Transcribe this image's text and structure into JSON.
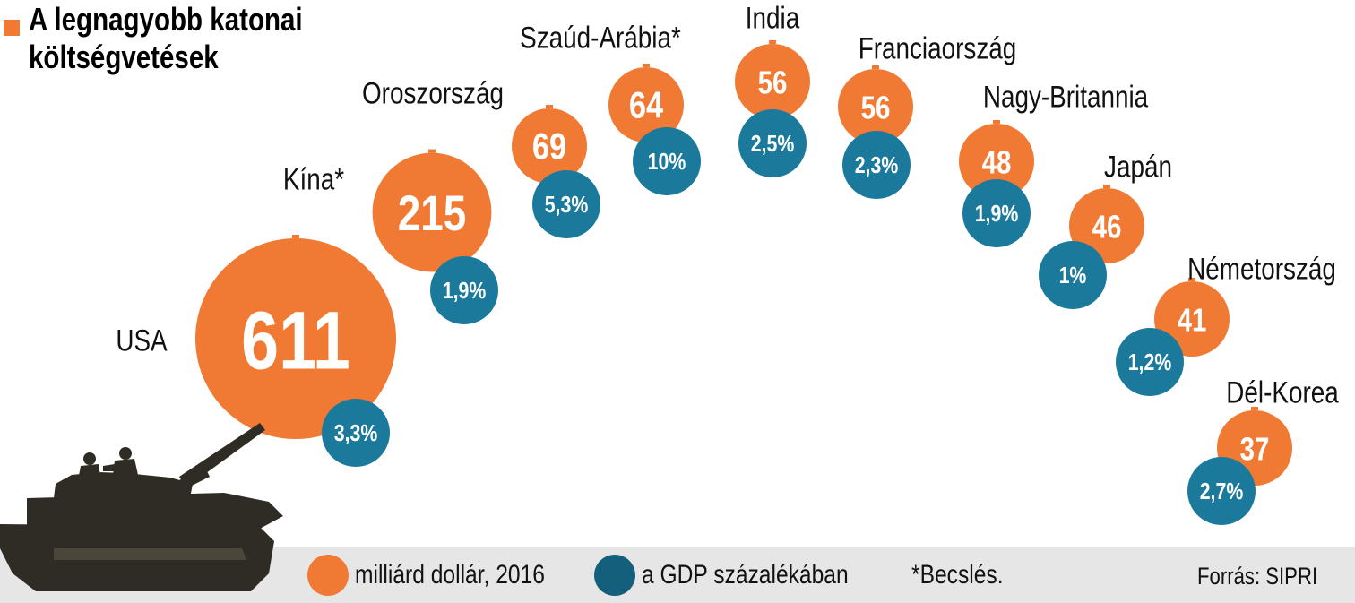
{
  "title": {
    "line1": "A legnagyobb katonai",
    "line2": "költségvetések"
  },
  "colors": {
    "orange": "#f07a34",
    "blue": "#1b7a9c",
    "dark_blue": "#145f7c",
    "footer": "#e6e6e6",
    "tank": "#2e2c24"
  },
  "chart_data": {
    "type": "bubble",
    "title": "A legnagyobb katonai költségvetések",
    "series": [
      {
        "name": "milliárd dollár, 2016",
        "color": "#f07a34"
      },
      {
        "name": "a GDP százalékában",
        "color": "#1b7a9c"
      }
    ],
    "countries": [
      {
        "name": "USA",
        "spending": 611,
        "spending_label": "611",
        "gdp_pct": 3.3,
        "gdp_label": "3,3%"
      },
      {
        "name": "Kína*",
        "spending": 215,
        "spending_label": "215",
        "gdp_pct": 1.9,
        "gdp_label": "1,9%"
      },
      {
        "name": "Oroszország",
        "spending": 69,
        "spending_label": "69",
        "gdp_pct": 5.3,
        "gdp_label": "5,3%"
      },
      {
        "name": "Szaúd-Arábia*",
        "spending": 64,
        "spending_label": "64",
        "gdp_pct": 10,
        "gdp_label": "10%"
      },
      {
        "name": "India",
        "spending": 56,
        "spending_label": "56",
        "gdp_pct": 2.5,
        "gdp_label": "2,5%"
      },
      {
        "name": "Franciaország",
        "spending": 56,
        "spending_label": "56",
        "gdp_pct": 2.3,
        "gdp_label": "2,3%"
      },
      {
        "name": "Nagy-Britannia",
        "spending": 48,
        "spending_label": "48",
        "gdp_pct": 1.9,
        "gdp_label": "1,9%"
      },
      {
        "name": "Japán",
        "spending": 46,
        "spending_label": "46",
        "gdp_pct": 1,
        "gdp_label": "1%"
      },
      {
        "name": "Németország",
        "spending": 41,
        "spending_label": "41",
        "gdp_pct": 1.2,
        "gdp_label": "1,2%"
      },
      {
        "name": "Dél-Korea",
        "spending": 37,
        "spending_label": "37",
        "gdp_pct": 2.7,
        "gdp_label": "2,7%"
      }
    ]
  },
  "legend": {
    "spending": "milliárd dollár, 2016",
    "gdp": "a GDP százalékában",
    "note": "*Becslés."
  },
  "source": "Forrás: SIPRI"
}
